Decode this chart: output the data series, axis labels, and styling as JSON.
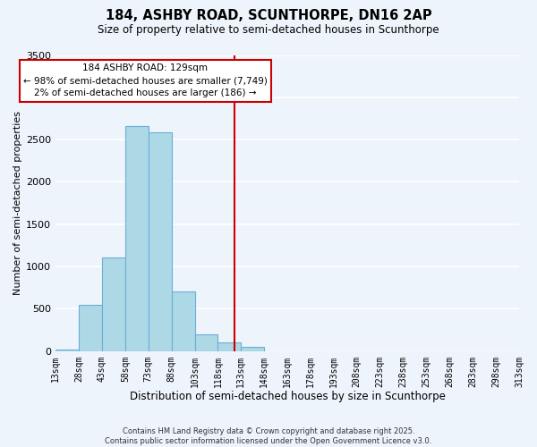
{
  "title": "184, ASHBY ROAD, SCUNTHORPE, DN16 2AP",
  "subtitle": "Size of property relative to semi-detached houses in Scunthorpe",
  "xlabel": "Distribution of semi-detached houses by size in Scunthorpe",
  "ylabel": "Number of semi-detached properties",
  "bar_edges": [
    13,
    28,
    43,
    58,
    73,
    88,
    103,
    118,
    133,
    148,
    163,
    178,
    193,
    208,
    223,
    238,
    253,
    268,
    283,
    298,
    313
  ],
  "bar_heights": [
    20,
    550,
    1110,
    2660,
    2590,
    700,
    195,
    105,
    45,
    0,
    0,
    0,
    0,
    0,
    0,
    0,
    0,
    0,
    0,
    0
  ],
  "bar_color": "#add8e6",
  "bar_edge_color": "#6baed6",
  "vline_x": 129,
  "vline_color": "#cc0000",
  "ylim": [
    0,
    3500
  ],
  "annotation_title": "184 ASHBY ROAD: 129sqm",
  "annotation_line1": "← 98% of semi-detached houses are smaller (7,749)",
  "annotation_line2": "2% of semi-detached houses are larger (186) →",
  "annotation_box_color": "#ffffff",
  "annotation_box_edge": "#cc0000",
  "tick_labels": [
    "13sqm",
    "28sqm",
    "43sqm",
    "58sqm",
    "73sqm",
    "88sqm",
    "103sqm",
    "118sqm",
    "133sqm",
    "148sqm",
    "163sqm",
    "178sqm",
    "193sqm",
    "208sqm",
    "223sqm",
    "238sqm",
    "253sqm",
    "268sqm",
    "283sqm",
    "298sqm",
    "313sqm"
  ],
  "footnote1": "Contains HM Land Registry data © Crown copyright and database right 2025.",
  "footnote2": "Contains public sector information licensed under the Open Government Licence v3.0.",
  "bg_color": "#eef4fb",
  "grid_color": "#ffffff",
  "yticks": [
    0,
    500,
    1000,
    1500,
    2000,
    2500,
    3000,
    3500
  ]
}
